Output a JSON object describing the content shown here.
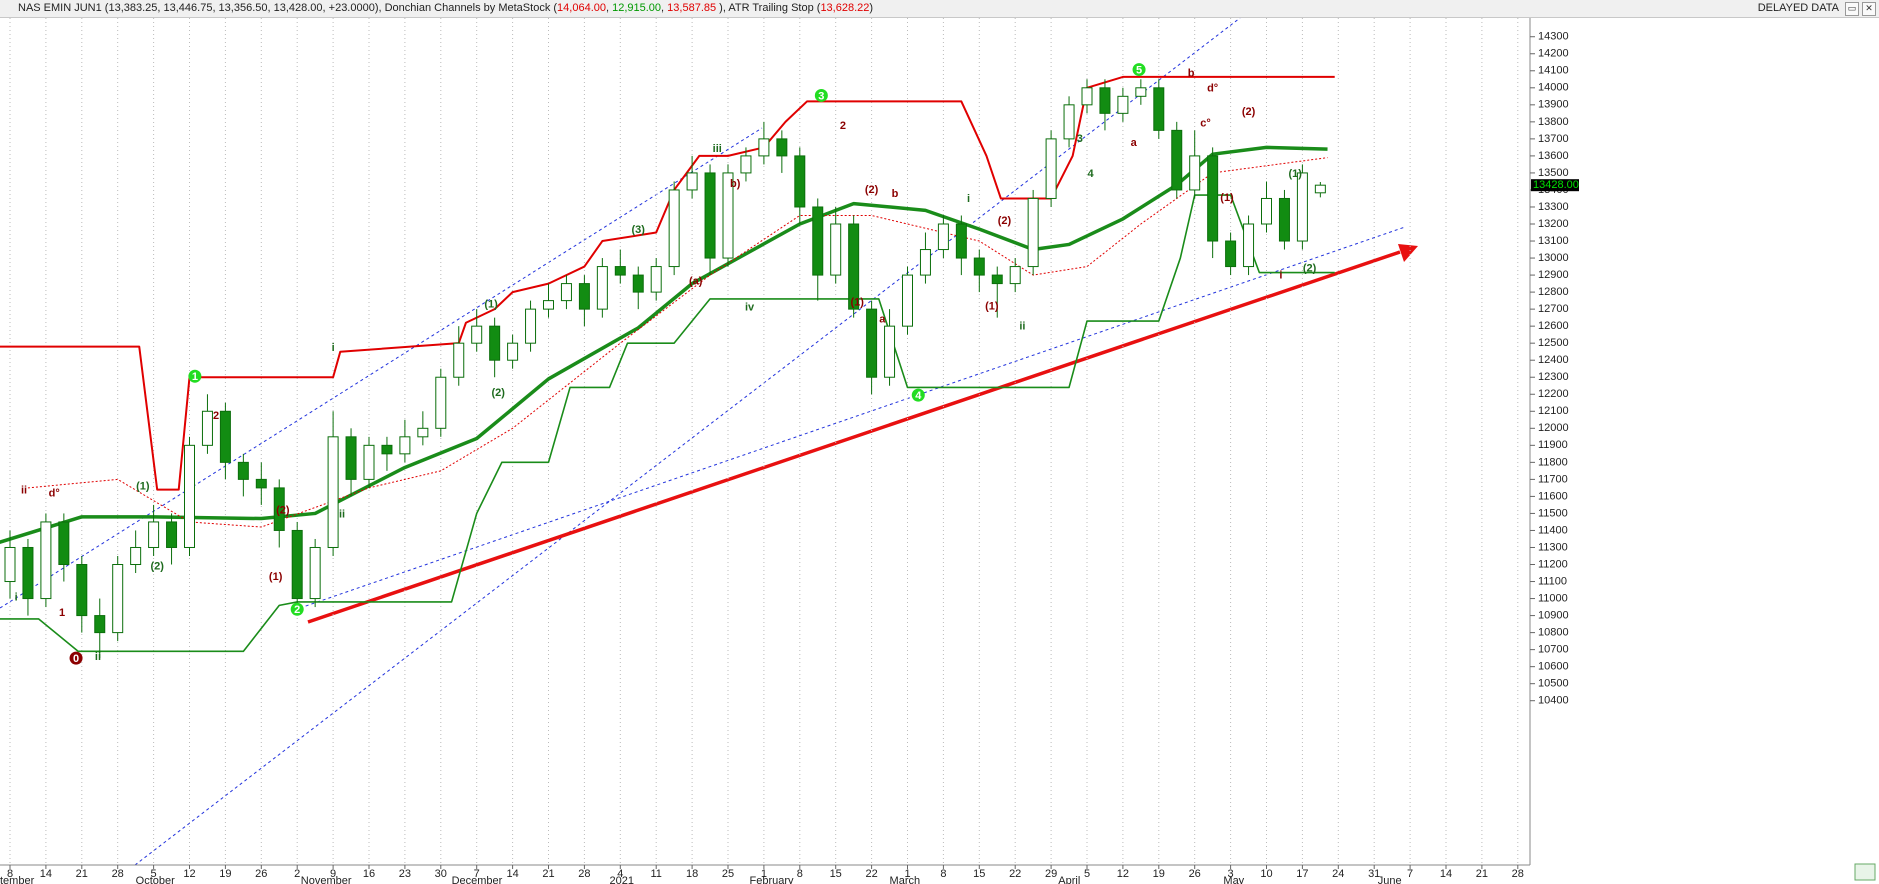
{
  "header": {
    "parts": [
      {
        "text": "NAS EMIN JUN1 (13,383.25, 13,446.75, 13,356.50, 13,428.00, +23.0000), Donchian Channels by MetaStock (",
        "color": "#222222"
      },
      {
        "text": "14,064.00",
        "color": "#e00000"
      },
      {
        "text": ", ",
        "color": "#222222"
      },
      {
        "text": "12,915.00",
        "color": "#009900"
      },
      {
        "text": ", ",
        "color": "#222222"
      },
      {
        "text": "13,587.85",
        "color": "#e00000"
      },
      {
        "text": " ), ATR Trailing Stop (",
        "color": "#222222"
      },
      {
        "text": "13,628.22",
        "color": "#e00000"
      },
      {
        "text": ")",
        "color": "#222222"
      }
    ],
    "status": "DELAYED DATA"
  },
  "chart_data": {
    "type": "candlestick",
    "xlim": [
      -0.3,
      42.3
    ],
    "ylim": [
      9435,
      14410
    ],
    "grid": true,
    "xticks": [
      {
        "value": 0,
        "label": "8"
      },
      {
        "value": 1,
        "label": "14"
      },
      {
        "value": 2,
        "label": "21"
      },
      {
        "value": 3,
        "label": "28"
      },
      {
        "value": 4,
        "label": "5"
      },
      {
        "value": 5,
        "label": "12"
      },
      {
        "value": 6,
        "label": "19"
      },
      {
        "value": 7,
        "label": "26"
      },
      {
        "value": 8,
        "label": "2"
      },
      {
        "value": 9,
        "label": "9"
      },
      {
        "value": 10,
        "label": "16"
      },
      {
        "value": 11,
        "label": "23"
      },
      {
        "value": 12,
        "label": "30"
      },
      {
        "value": 13,
        "label": "7"
      },
      {
        "value": 14,
        "label": "14"
      },
      {
        "value": 15,
        "label": "21"
      },
      {
        "value": 16,
        "label": "28"
      },
      {
        "value": 17,
        "label": "4"
      },
      {
        "value": 18,
        "label": "11"
      },
      {
        "value": 19,
        "label": "18"
      },
      {
        "value": 20,
        "label": "25"
      },
      {
        "value": 21,
        "label": "1"
      },
      {
        "value": 22,
        "label": "8"
      },
      {
        "value": 23,
        "label": "15"
      },
      {
        "value": 24,
        "label": "22"
      },
      {
        "value": 25,
        "label": "1"
      },
      {
        "value": 26,
        "label": "8"
      },
      {
        "value": 27,
        "label": "15"
      },
      {
        "value": 28,
        "label": "22"
      },
      {
        "value": 29,
        "label": "29"
      },
      {
        "value": 30,
        "label": "5"
      },
      {
        "value": 31,
        "label": "12"
      },
      {
        "value": 32,
        "label": "19"
      },
      {
        "value": 33,
        "label": "26"
      },
      {
        "value": 34,
        "label": "3"
      },
      {
        "value": 35,
        "label": "10"
      },
      {
        "value": 36,
        "label": "17"
      },
      {
        "value": 37,
        "label": "24"
      },
      {
        "value": 38,
        "label": "31"
      },
      {
        "value": 39,
        "label": "7"
      },
      {
        "value": 40,
        "label": "14"
      },
      {
        "value": 41,
        "label": "21"
      },
      {
        "value": 42,
        "label": "28"
      }
    ],
    "month_labels": [
      {
        "value": -0.3,
        "label": "tember"
      },
      {
        "value": 3.5,
        "label": "October"
      },
      {
        "value": 8.1,
        "label": "November"
      },
      {
        "value": 12.3,
        "label": "December"
      },
      {
        "value": 16.7,
        "label": "2021"
      },
      {
        "value": 20.6,
        "label": "February"
      },
      {
        "value": 24.5,
        "label": "March"
      },
      {
        "value": 29.2,
        "label": "April"
      },
      {
        "value": 33.8,
        "label": "May"
      },
      {
        "value": 38.1,
        "label": "June"
      }
    ],
    "yticks": [
      10400,
      10500,
      10600,
      10700,
      10800,
      10900,
      11000,
      11100,
      11200,
      11300,
      11400,
      11500,
      11600,
      11700,
      11800,
      11900,
      12000,
      12100,
      12200,
      12300,
      12400,
      12500,
      12600,
      12700,
      12800,
      12900,
      13000,
      13100,
      13200,
      13300,
      13400,
      13500,
      13600,
      13700,
      13800,
      13900,
      14000,
      14100,
      14200,
      14300
    ],
    "candles": {
      "up_color": "#ffffff",
      "down_color": "#128c12",
      "edge_color": "#0b6e0b",
      "x": [
        0,
        0.5,
        1,
        1.5,
        2,
        2.5,
        3,
        3.5,
        4,
        4.5,
        5,
        5.5,
        6,
        6.5,
        7,
        7.5,
        8,
        8.5,
        9,
        9.5,
        10,
        10.5,
        11,
        11.5,
        12,
        12.5,
        13,
        13.5,
        14,
        14.5,
        15,
        15.5,
        16,
        16.5,
        17,
        17.5,
        18,
        18.5,
        19,
        19.5,
        20,
        20.5,
        21,
        21.5,
        22,
        22.5,
        23,
        23.5,
        24,
        24.5,
        25,
        25.5,
        26,
        26.5,
        27,
        27.5,
        28,
        28.5,
        29,
        29.5,
        30,
        30.5,
        31,
        31.5,
        32,
        32.5,
        33,
        33.5,
        34,
        34.5,
        35,
        35.5,
        36,
        36.5
      ],
      "open": [
        11100,
        11300,
        11000,
        11450,
        11200,
        10900,
        10800,
        11200,
        11300,
        11450,
        11300,
        11900,
        12100,
        11800,
        11700,
        11650,
        11400,
        11000,
        11300,
        11950,
        11700,
        11900,
        11850,
        11950,
        12000,
        12300,
        12500,
        12600,
        12400,
        12500,
        12700,
        12750,
        12850,
        12700,
        12950,
        12900,
        12800,
        12950,
        13400,
        13500,
        13000,
        13500,
        13600,
        13700,
        13600,
        13300,
        12900,
        13200,
        12700,
        12300,
        12600,
        12900,
        13050,
        13200,
        13000,
        12900,
        12850,
        12950,
        13350,
        13700,
        13900,
        14000,
        13850,
        13950,
        14000,
        13750,
        13400,
        13600,
        13100,
        12950,
        13200,
        13350,
        13100,
        13383.25
      ],
      "high": [
        11400,
        11350,
        11500,
        11500,
        11250,
        11000,
        11250,
        11400,
        11550,
        11500,
        11950,
        12200,
        12150,
        11850,
        11800,
        11700,
        11450,
        11350,
        12100,
        12000,
        11950,
        11950,
        12050,
        12100,
        12350,
        12600,
        12700,
        12650,
        12550,
        12750,
        12850,
        12900,
        12900,
        13000,
        13050,
        12950,
        13000,
        13450,
        13600,
        13550,
        13550,
        13650,
        13800,
        13750,
        13650,
        13350,
        13300,
        13250,
        12750,
        12700,
        12950,
        13150,
        13250,
        13250,
        13050,
        12950,
        13000,
        13400,
        13750,
        13950,
        14050,
        14050,
        14000,
        14050,
        14050,
        13800,
        13750,
        13650,
        13150,
        13250,
        13450,
        13400,
        13550,
        13446.75
      ],
      "low": [
        11000,
        10900,
        10950,
        11100,
        10800,
        10650,
        10750,
        11150,
        11250,
        11200,
        11250,
        11850,
        11700,
        11600,
        11550,
        11300,
        10950,
        10950,
        11250,
        11600,
        11650,
        11750,
        11800,
        11900,
        11950,
        12250,
        12450,
        12300,
        12350,
        12450,
        12650,
        12700,
        12600,
        12650,
        12850,
        12700,
        12750,
        12900,
        13350,
        12900,
        12950,
        13450,
        13550,
        13500,
        13200,
        12750,
        12850,
        12650,
        12200,
        12250,
        12550,
        12850,
        13000,
        12900,
        12800,
        12650,
        12800,
        12900,
        13300,
        13650,
        13850,
        13750,
        13800,
        13900,
        13700,
        13350,
        13350,
        13000,
        12900,
        12900,
        13150,
        13050,
        13050,
        13356.5
      ],
      "close": [
        11300,
        11000,
        11450,
        11200,
        10900,
        10800,
        11200,
        11300,
        11450,
        11300,
        11900,
        12100,
        11800,
        11700,
        11650,
        11400,
        11000,
        11300,
        11950,
        11700,
        11900,
        11850,
        11950,
        12000,
        12300,
        12500,
        12600,
        12400,
        12500,
        12700,
        12750,
        12850,
        12700,
        12950,
        12900,
        12800,
        12950,
        13400,
        13500,
        13000,
        13500,
        13600,
        13700,
        13600,
        13300,
        12900,
        13200,
        12700,
        12300,
        12600,
        12900,
        13050,
        13200,
        13000,
        12900,
        12850,
        12950,
        13350,
        13700,
        13900,
        14000,
        13850,
        13950,
        14000,
        13750,
        13400,
        13600,
        13100,
        12950,
        13200,
        13350,
        13100,
        13500,
        13428
      ]
    },
    "last_price": {
      "value": 13428,
      "label": "13428.00",
      "color": "#00e000"
    },
    "lines": [
      {
        "color": "#e00000",
        "width": 2,
        "dash": "",
        "x": [
          -0.3,
          3.6,
          4.1,
          4.7,
          5.0,
          9.0,
          9.2,
          12.5,
          12.7,
          13.5,
          14.0,
          15.0,
          16.0,
          16.5,
          18.0,
          18.5,
          19.2,
          20.0,
          21.0,
          21.6,
          22.2,
          26.5,
          27.2,
          27.6,
          29.0,
          29.6,
          30.0,
          31.0,
          36.9
        ],
        "y": [
          12480,
          12480,
          11640,
          11640,
          12300,
          12300,
          12450,
          12500,
          12620,
          12700,
          12800,
          12850,
          12950,
          13100,
          13150,
          13400,
          13600,
          13600,
          13650,
          13800,
          13920,
          13920,
          13600,
          13350,
          13350,
          13600,
          14000,
          14064,
          14064
        ]
      },
      {
        "color": "#1a8c1a",
        "width": 1.6,
        "dash": "",
        "x": [
          -0.3,
          0.8,
          1.9,
          6.5,
          7.5,
          8.0,
          12.3,
          13.0,
          13.7,
          15.0,
          15.6,
          16.7,
          17.2,
          18.5,
          19.5,
          21.0,
          24.2,
          25.0,
          29.5,
          30.0,
          32.0,
          32.6,
          33.0,
          34.0,
          34.8,
          36.9
        ],
        "y": [
          10880,
          10880,
          10690,
          10690,
          10960,
          10980,
          10980,
          11500,
          11800,
          11800,
          12240,
          12240,
          12500,
          12500,
          12760,
          12760,
          12760,
          12240,
          12240,
          12630,
          12630,
          13000,
          13370,
          13370,
          12915,
          12915
        ]
      },
      {
        "color": "#1a8c1a",
        "width": 3.5,
        "dash": "",
        "x": [
          -0.3,
          2,
          4,
          7,
          8.5,
          11,
          13,
          15,
          17.5,
          19,
          22,
          23.5,
          25.5,
          27,
          28.5,
          29.5,
          31,
          32.5,
          33.5,
          35,
          36.7
        ],
        "y": [
          11330,
          11480,
          11480,
          11470,
          11500,
          11770,
          11940,
          12290,
          12590,
          12850,
          13200,
          13320,
          13280,
          13170,
          13050,
          13080,
          13230,
          13430,
          13610,
          13650,
          13640
        ]
      },
      {
        "color": "#e00000",
        "width": 1,
        "dash": "2 2",
        "x": [
          0.5,
          3,
          5,
          7,
          10,
          12,
          14,
          17,
          19.5,
          22,
          24,
          27,
          28.5,
          30,
          31.5,
          33.5,
          36.7
        ],
        "y": [
          11650,
          11700,
          11450,
          11420,
          11650,
          11750,
          12000,
          12500,
          12900,
          13250,
          13250,
          13100,
          12900,
          12950,
          13200,
          13500,
          13590
        ]
      }
    ],
    "annotations": [
      {
        "text": "i",
        "x": 0.17,
        "y": 11007,
        "color": "#1e6b1e"
      },
      {
        "text": "ii",
        "x": 0.39,
        "y": 11633,
        "color": "#8b0000"
      },
      {
        "text": "d°",
        "x": 1.23,
        "y": 11616,
        "color": "#8b0000"
      },
      {
        "text": "1",
        "x": 1.45,
        "y": 10914,
        "color": "#8b0000"
      },
      {
        "text": "ii",
        "x": 2.45,
        "y": 10657,
        "color": "#1e6b1e"
      },
      {
        "text": "(1)",
        "x": 3.7,
        "y": 11657,
        "color": "#1e6b1e"
      },
      {
        "text": "(2)",
        "x": 4.1,
        "y": 11189,
        "color": "#1e6b1e"
      },
      {
        "text": "2",
        "x": 5.74,
        "y": 12072,
        "color": "#8b0000"
      },
      {
        "text": "(2)",
        "x": 7.6,
        "y": 11516,
        "color": "#8b0000"
      },
      {
        "text": "(1)",
        "x": 7.4,
        "y": 11125,
        "color": "#8b0000"
      },
      {
        "text": "i",
        "x": 9.0,
        "y": 12470,
        "color": "#1e6b1e"
      },
      {
        "text": "ii",
        "x": 9.25,
        "y": 11493,
        "color": "#1e6b1e"
      },
      {
        "text": "(1)",
        "x": 13.4,
        "y": 12727,
        "color": "#1e6b1e"
      },
      {
        "text": "(2)",
        "x": 13.6,
        "y": 12206,
        "color": "#1e6b1e"
      },
      {
        "text": "(3)",
        "x": 17.5,
        "y": 13165,
        "color": "#1e6b1e"
      },
      {
        "text": "iii",
        "x": 19.7,
        "y": 13639,
        "color": "#1e6b1e"
      },
      {
        "text": "b)",
        "x": 20.2,
        "y": 13435,
        "color": "#8b0000"
      },
      {
        "text": "iv",
        "x": 20.6,
        "y": 12710,
        "color": "#1e6b1e"
      },
      {
        "text": "(a)",
        "x": 19.1,
        "y": 12862,
        "color": "#8b0000"
      },
      {
        "text": "2",
        "x": 23.2,
        "y": 13774,
        "color": "#8b0000"
      },
      {
        "text": "(2)",
        "x": 24.0,
        "y": 13400,
        "color": "#8b0000"
      },
      {
        "text": "b",
        "x": 24.65,
        "y": 13376,
        "color": "#8b0000"
      },
      {
        "text": "(1)",
        "x": 23.6,
        "y": 12739,
        "color": "#8b0000"
      },
      {
        "text": "a",
        "x": 24.3,
        "y": 12639,
        "color": "#8b0000"
      },
      {
        "text": "(2)",
        "x": 27.7,
        "y": 13218,
        "color": "#8b0000"
      },
      {
        "text": "i",
        "x": 26.7,
        "y": 13347,
        "color": "#1e6b1e"
      },
      {
        "text": "ii",
        "x": 28.2,
        "y": 12598,
        "color": "#1e6b1e"
      },
      {
        "text": "(1)",
        "x": 27.35,
        "y": 12715,
        "color": "#8b0000"
      },
      {
        "text": "3",
        "x": 29.8,
        "y": 13698,
        "color": "#1e6b1e"
      },
      {
        "text": "4",
        "x": 30.1,
        "y": 13493,
        "color": "#1e6b1e"
      },
      {
        "text": "a",
        "x": 31.3,
        "y": 13674,
        "color": "#8b0000"
      },
      {
        "text": "b",
        "x": 32.9,
        "y": 14084,
        "color": "#8b0000"
      },
      {
        "text": "d°",
        "x": 33.5,
        "y": 13996,
        "color": "#8b0000"
      },
      {
        "text": "c°",
        "x": 33.3,
        "y": 13791,
        "color": "#8b0000"
      },
      {
        "text": "(2)",
        "x": 34.5,
        "y": 13856,
        "color": "#8b0000"
      },
      {
        "text": "(1)",
        "x": 33.9,
        "y": 13353,
        "color": "#8b0000"
      },
      {
        "text": "(1)",
        "x": 35.8,
        "y": 13493,
        "color": "#1e6b1e"
      },
      {
        "text": "(2)",
        "x": 36.2,
        "y": 12937,
        "color": "#1e6b1e"
      },
      {
        "text": "i",
        "x": 35.4,
        "y": 12896,
        "color": "#8b0000"
      }
    ],
    "wave_markers": [
      {
        "text": "0",
        "x": 1.84,
        "y": 10650,
        "color": "#8b0000"
      },
      {
        "text": "1",
        "x": 5.15,
        "y": 12306,
        "color": "#22dd22"
      },
      {
        "text": "2",
        "x": 8.0,
        "y": 10937,
        "color": "#22dd22"
      },
      {
        "text": "3",
        "x": 22.6,
        "y": 13955,
        "color": "#22dd22"
      },
      {
        "text": "4",
        "x": 25.3,
        "y": 12195,
        "color": "#22dd22"
      },
      {
        "text": "5",
        "x": 31.45,
        "y": 14107,
        "color": "#22dd22"
      }
    ]
  }
}
